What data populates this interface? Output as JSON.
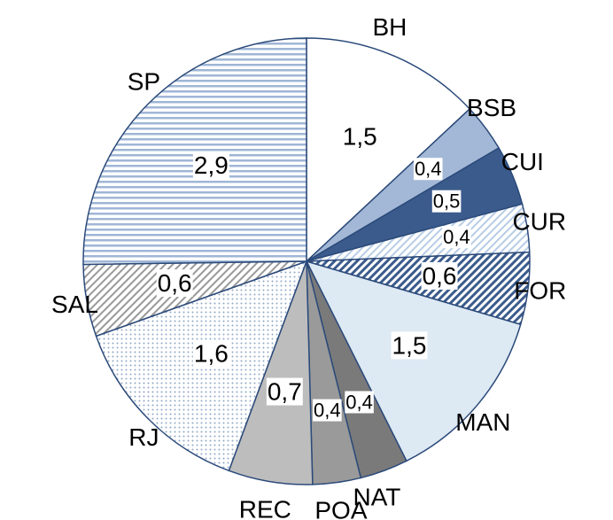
{
  "chart_data": {
    "type": "pie",
    "categories": [
      "BH",
      "BSB",
      "CUI",
      "CUR",
      "FOR",
      "MAN",
      "NAT",
      "POA",
      "REC",
      "RJ",
      "SAL",
      "SP"
    ],
    "values": [
      1.5,
      0.4,
      0.5,
      0.4,
      0.6,
      1.5,
      0.4,
      0.4,
      0.7,
      1.6,
      0.6,
      2.9
    ],
    "value_labels": [
      "1,5",
      "0,4",
      "0,5",
      "0,4",
      "0,6",
      "1,5",
      "0,4",
      "0,4",
      "0,7",
      "1,6",
      "0,6",
      "2,9"
    ],
    "colors": [
      "#ffffff",
      "#a3b8d6",
      "#3b5b8c",
      "#b8cde6",
      "#3b5b8c",
      "#dde9f3",
      "#7a7a7a",
      "#9a9a9a",
      "#bdbdbd",
      "#8fa8c8",
      "#9a9a9a",
      "#9fb6d6"
    ],
    "patterns": [
      "solid",
      "solid",
      "solid",
      "diagonal",
      "diagonal",
      "solid",
      "solid",
      "solid",
      "solid",
      "dots",
      "diagonal",
      "horizontal"
    ],
    "start_angle": 0,
    "direction": "clockwise"
  }
}
